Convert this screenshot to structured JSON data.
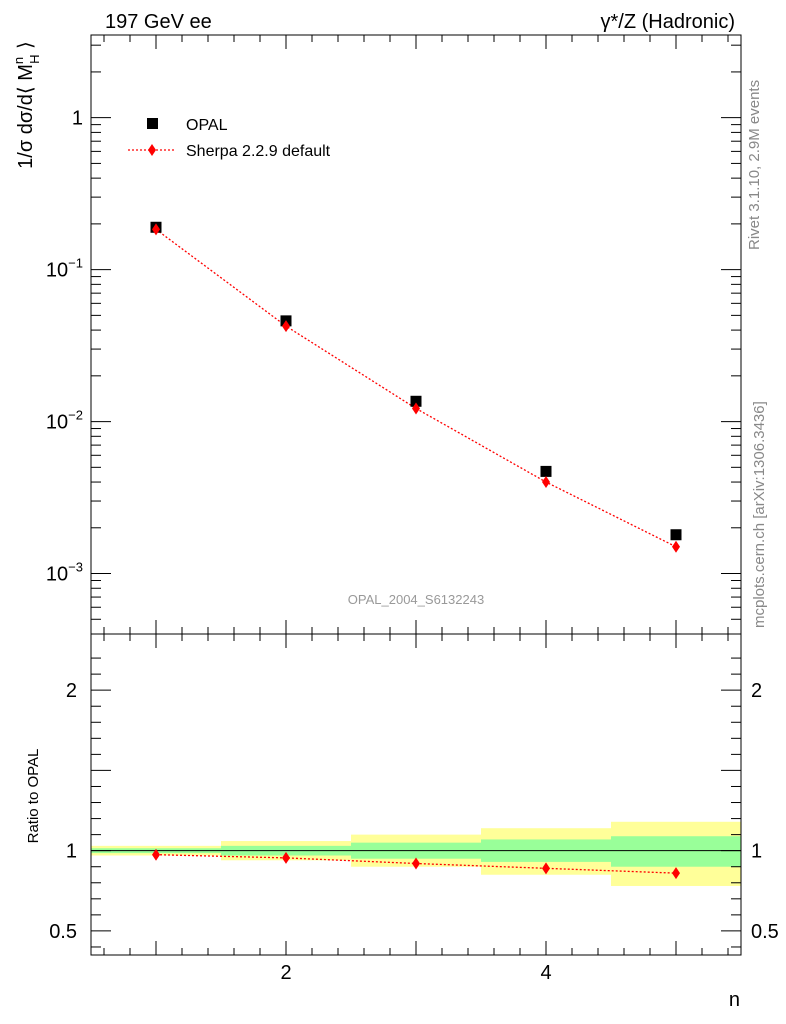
{
  "header": {
    "left": "197 GeV ee",
    "right": "γ*/Z (Hadronic)"
  },
  "side_text": {
    "rivet": "Rivet 3.1.10,  2.9M events",
    "mcplots": "mcplots.cern.ch [arXiv:1306.3436]"
  },
  "watermark": "OPAL_2004_S6132243",
  "chart_data": [
    {
      "type": "scatter",
      "yscale": "log",
      "ylabel": "1/σ dσ/d⟨ M_H^n ⟩",
      "xlim": [
        0.5,
        5.5
      ],
      "ylim": [
        0.0004,
        3.5
      ],
      "y_ticks": [
        {
          "value": 1,
          "label": "1"
        },
        {
          "value": 0.1,
          "label": "10^-1"
        },
        {
          "value": 0.01,
          "label": "10^-2"
        },
        {
          "value": 0.001,
          "label": "10^-3"
        }
      ],
      "legend_position": "top-left",
      "series": [
        {
          "name": "OPAL",
          "marker": "square",
          "color": "#000000",
          "x": [
            1,
            2,
            3,
            4,
            5
          ],
          "y": [
            0.19,
            0.046,
            0.0136,
            0.0047,
            0.0018
          ]
        },
        {
          "name": "Sherpa 2.2.9 default",
          "marker": "diamond",
          "line": "dotted",
          "color": "#ff0000",
          "x": [
            1,
            2,
            3,
            4,
            5
          ],
          "y": [
            0.184,
            0.0425,
            0.0122,
            0.004,
            0.0015
          ]
        }
      ]
    },
    {
      "type": "line",
      "ylabel": "Ratio to OPAL",
      "xlabel": "n",
      "xlim": [
        0.5,
        5.5
      ],
      "ylim": [
        0.35,
        2.35
      ],
      "x_ticks": [
        2,
        4
      ],
      "y_ticks": [
        {
          "value": 0.5,
          "label": "0.5"
        },
        {
          "value": 1,
          "label": "1"
        },
        {
          "value": 2,
          "label": "2"
        }
      ],
      "bands": {
        "x_edges": [
          0.5,
          1.5,
          2.5,
          3.5,
          4.5,
          5.5
        ],
        "outer_color": "#ffff99",
        "inner_color": "#99ff99",
        "outer_low": [
          0.97,
          0.94,
          0.9,
          0.85,
          0.78
        ],
        "outer_high": [
          1.03,
          1.06,
          1.1,
          1.14,
          1.18
        ],
        "inner_low": [
          0.985,
          0.97,
          0.95,
          0.93,
          0.9
        ],
        "inner_high": [
          1.015,
          1.03,
          1.05,
          1.07,
          1.09
        ]
      },
      "series": [
        {
          "name": "Sherpa 2.2.9 default",
          "marker": "diamond",
          "line": "dotted",
          "color": "#ff0000",
          "x": [
            1,
            2,
            3,
            4,
            5
          ],
          "y": [
            0.975,
            0.955,
            0.92,
            0.89,
            0.86
          ]
        }
      ]
    }
  ]
}
